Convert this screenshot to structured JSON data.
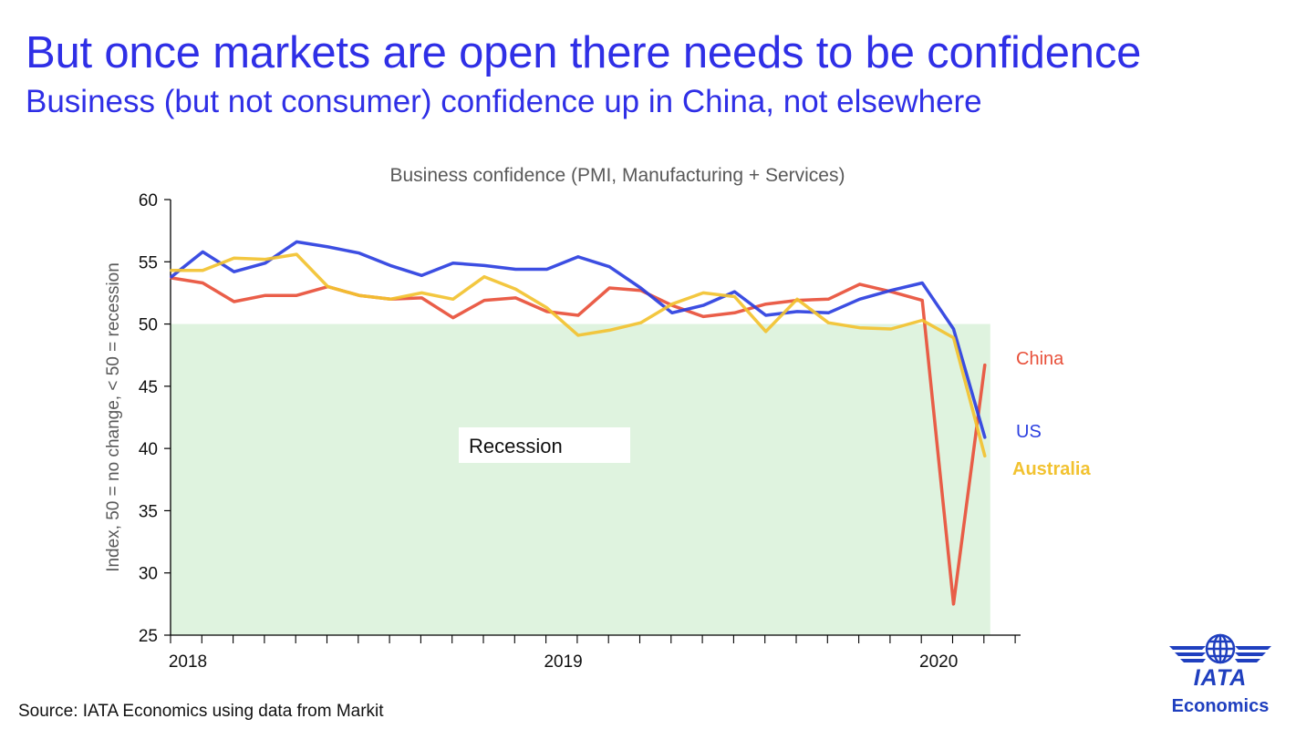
{
  "header": {
    "title": "But once markets are open there needs to be confidence",
    "subtitle": "Business (but not consumer) confidence up in China, not elsewhere"
  },
  "footer": {
    "source": "Source: IATA Economics using data from Markit"
  },
  "logo": {
    "word": "IATA",
    "tagline": "Economics",
    "icon": "globe-wings-icon",
    "color": "#1f3fbf"
  },
  "chart_data": {
    "type": "line",
    "title": "Business confidence (PMI, Manufacturing + Services)",
    "ylabel": "Index, 50 = no change, < 50 = recession",
    "ylim": [
      25,
      60
    ],
    "yticks": [
      25,
      30,
      35,
      40,
      45,
      50,
      55,
      60
    ],
    "x_tick_labels": [
      "2018",
      "2019",
      "2020"
    ],
    "x_tick_label_months": [
      0,
      12,
      24
    ],
    "months": [
      "2018-01",
      "2018-02",
      "2018-03",
      "2018-04",
      "2018-05",
      "2018-06",
      "2018-07",
      "2018-08",
      "2018-09",
      "2018-10",
      "2018-11",
      "2018-12",
      "2019-01",
      "2019-02",
      "2019-03",
      "2019-04",
      "2019-05",
      "2019-06",
      "2019-07",
      "2019-08",
      "2019-09",
      "2019-10",
      "2019-11",
      "2019-12",
      "2020-01",
      "2020-02",
      "2020-03"
    ],
    "recession_band": {
      "label": "Recession",
      "from": 25,
      "to": 50,
      "color": "#dff3df"
    },
    "series": [
      {
        "name": "China",
        "color": "#e8503a",
        "values": [
          53.7,
          53.3,
          51.8,
          52.3,
          52.3,
          53.0,
          52.3,
          52.0,
          52.1,
          50.5,
          51.9,
          52.1,
          51.0,
          50.7,
          52.9,
          52.7,
          51.5,
          50.6,
          50.9,
          51.6,
          51.9,
          52.0,
          53.2,
          52.6,
          51.9,
          27.5,
          46.7
        ]
      },
      {
        "name": "US",
        "color": "#2b3fe0",
        "values": [
          53.8,
          55.8,
          54.2,
          54.9,
          56.6,
          56.2,
          55.7,
          54.7,
          53.9,
          54.9,
          54.7,
          54.4,
          54.4,
          55.4,
          54.6,
          52.9,
          50.9,
          51.5,
          52.6,
          50.7,
          51.0,
          50.9,
          52.0,
          52.7,
          53.3,
          49.6,
          40.9
        ]
      },
      {
        "name": "Australia",
        "color": "#f2c230",
        "values": [
          54.3,
          54.3,
          55.3,
          55.2,
          55.6,
          53.0,
          52.3,
          52.0,
          52.5,
          52.0,
          53.8,
          52.8,
          51.3,
          49.1,
          49.5,
          50.1,
          51.6,
          52.5,
          52.2,
          49.4,
          52.0,
          50.1,
          49.7,
          49.6,
          50.3,
          48.9,
          39.4
        ]
      }
    ]
  }
}
